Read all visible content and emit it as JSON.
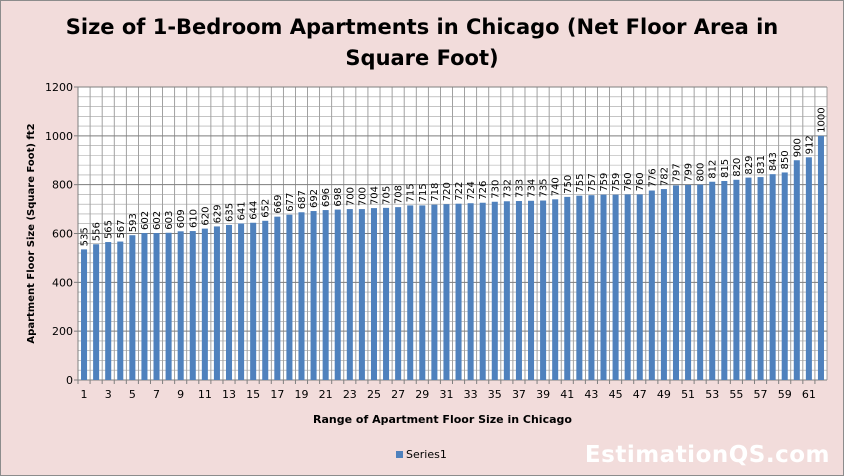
{
  "chart_data": {
    "type": "bar",
    "title": "Size of 1-Bedroom Apartments in Chicago (Net Floor Area in Square Foot)",
    "title_lines": [
      "Size of 1-Bedroom Apartments in Chicago (Net Floor Area in",
      "Square Foot)"
    ],
    "xlabel": "Range of Apartment Floor Size in Chicago",
    "ylabel": "Apartment Floor Size (Square Foot) ft2",
    "ylim": [
      0,
      1200
    ],
    "yticks": [
      0,
      200,
      400,
      600,
      800,
      1000,
      1200
    ],
    "grid": true,
    "legend": "bottom",
    "bar_color": "#4f81bd",
    "categories": [
      1,
      2,
      3,
      4,
      5,
      6,
      7,
      8,
      9,
      10,
      11,
      12,
      13,
      14,
      15,
      16,
      17,
      18,
      19,
      20,
      21,
      22,
      23,
      24,
      25,
      26,
      27,
      28,
      29,
      30,
      31,
      32,
      33,
      34,
      35,
      36,
      37,
      38,
      39,
      40,
      41,
      42,
      43,
      44,
      45,
      46,
      47,
      48,
      49,
      50,
      51,
      52,
      53,
      54,
      55,
      56,
      57,
      58,
      59,
      60,
      61,
      62
    ],
    "x_tick_labels": [
      1,
      3,
      5,
      7,
      9,
      11,
      13,
      15,
      17,
      19,
      21,
      23,
      25,
      27,
      29,
      31,
      33,
      35,
      37,
      39,
      41,
      43,
      45,
      47,
      49,
      51,
      53,
      55,
      57,
      59,
      61
    ],
    "series": [
      {
        "name": "Series1",
        "values": [
          535,
          556,
          565,
          567,
          593,
          602,
          602,
          603,
          609,
          610,
          620,
          629,
          635,
          641,
          644,
          652,
          669,
          677,
          687,
          692,
          696,
          698,
          700,
          700,
          704,
          705,
          708,
          715,
          715,
          718,
          720,
          722,
          724,
          726,
          730,
          732,
          733,
          734,
          735,
          740,
          750,
          755,
          757,
          759,
          759,
          760,
          760,
          776,
          782,
          797,
          799,
          800,
          812,
          815,
          820,
          829,
          831,
          843,
          850,
          900,
          912,
          1000
        ]
      }
    ]
  },
  "watermark": "EstimationQS.com"
}
